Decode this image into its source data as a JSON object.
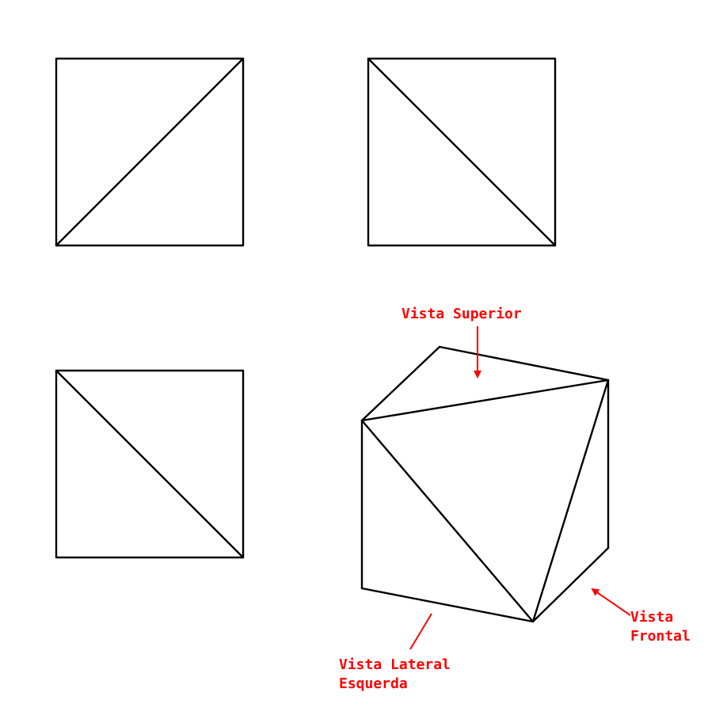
{
  "colors": {
    "lines": "#000000",
    "annotations": "#ff0000",
    "background": "#ffffff"
  },
  "labels": {
    "top_view": "Vista Superior",
    "front_view_line1": "Vista",
    "front_view_line2": "Frontal",
    "left_view_line1": "Vista Lateral",
    "left_view_line2": "Esquerda"
  }
}
